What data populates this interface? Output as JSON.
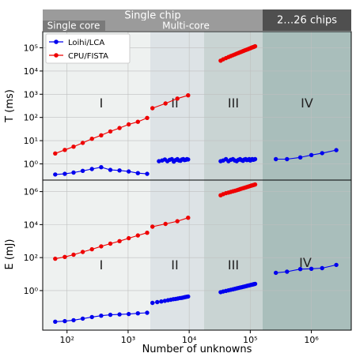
{
  "banners": {
    "single_chip": "Single chip",
    "single_core": "Single core",
    "multi_core": "Multi-core",
    "multi_chip": "2…26 chips"
  },
  "colors": {
    "region1": "#eef1f0",
    "region2": "#dde3e6",
    "region3": "#c9d4d3",
    "region4": "#a9bebb",
    "banner_light": "#9b9b9b",
    "banner_mid": "#7a7a7a",
    "banner_dark": "#4f4f4f",
    "loihi": "#0000ee",
    "cpu": "#ee0000"
  },
  "chart_data": [
    {
      "type": "line",
      "ylabel": "T (ms)",
      "xlabel": "",
      "xscale": "log",
      "yscale": "log",
      "xlim": [
        40,
        4500000
      ],
      "ylim": [
        0.2,
        500000
      ],
      "yticks": [
        1,
        10,
        100,
        1000,
        10000,
        100000
      ],
      "ytick_labels": [
        "10⁰",
        "10¹",
        "10²",
        "10³",
        "10⁴",
        "10⁵"
      ],
      "grid": true,
      "legend": "top-left",
      "region_labels": [
        "I",
        "II",
        "III",
        "IV"
      ],
      "series": [
        {
          "name": "Loihi/LCA",
          "color": "#0000ee",
          "segments": [
            {
              "x": [
                64,
                92,
                128,
                181,
                256,
                362,
                512,
                724,
                1024,
                1448,
                2048
              ],
              "y": [
                0.35,
                0.37,
                0.42,
                0.5,
                0.6,
                0.72,
                0.55,
                0.52,
                0.47,
                0.4,
                0.37
              ]
            },
            {
              "x": [
                3200,
                3600,
                4000,
                4400,
                4800,
                5200,
                5600,
                6000,
                6400,
                6800,
                7200,
                7600,
                8000,
                8400,
                8800,
                9200,
                9600
              ],
              "y": [
                1.3,
                1.4,
                1.55,
                1.3,
                1.5,
                1.6,
                1.25,
                1.45,
                1.6,
                1.4,
                1.35,
                1.55,
                1.6,
                1.45,
                1.5,
                1.6,
                1.55
              ]
            },
            {
              "x": [
                32768,
                36000,
                40000,
                44000,
                48000,
                52000,
                56000,
                60000,
                64000,
                68000,
                72000,
                76000,
                80000,
                84000,
                88000,
                92000,
                96000,
                100000,
                104000,
                108000,
                112000,
                116000,
                120000
              ],
              "y": [
                1.3,
                1.4,
                1.6,
                1.3,
                1.5,
                1.6,
                1.4,
                1.3,
                1.5,
                1.6,
                1.45,
                1.35,
                1.55,
                1.6,
                1.45,
                1.5,
                1.6,
                1.4,
                1.55,
                1.6,
                1.5,
                1.55,
                1.6
              ]
            },
            {
              "x": [
                262144,
                400000,
                660000,
                1000000,
                1500000,
                2560000
              ],
              "y": [
                1.6,
                1.6,
                1.9,
                2.4,
                2.9,
                3.9
              ]
            }
          ]
        },
        {
          "name": "CPU/FISTA",
          "color": "#ee0000",
          "segments": [
            {
              "x": [
                64,
                92,
                128,
                181,
                256,
                362,
                512,
                724,
                1024,
                1448,
                2048
              ],
              "y": [
                2.8,
                4,
                5.5,
                8,
                12,
                17,
                25,
                35,
                50,
                65,
                95
              ]
            },
            {
              "x": [
                2500,
                4096,
                6400,
                9600
              ],
              "y": [
                250,
                400,
                650,
                900
              ]
            },
            {
              "x": [
                32768,
                36000,
                40000,
                44000,
                48000,
                52000,
                56000,
                60000,
                64000,
                68000,
                72000,
                76000,
                80000,
                84000,
                88000,
                92000,
                96000,
                100000,
                104000,
                108000,
                112000,
                116000,
                120000
              ],
              "y": [
                28000,
                32000,
                36000,
                40000,
                44000,
                48000,
                52000,
                56000,
                60000,
                64000,
                68000,
                72000,
                76000,
                80000,
                84000,
                88000,
                92000,
                96000,
                100000,
                104000,
                108000,
                112000,
                116000
              ]
            }
          ]
        }
      ]
    },
    {
      "type": "line",
      "ylabel": "E (mJ)",
      "xlabel": "Number of unknowns",
      "xscale": "log",
      "yscale": "log",
      "xlim": [
        40,
        4500000
      ],
      "ylim": [
        0.004,
        5000000
      ],
      "yticks": [
        1,
        100,
        10000,
        1000000
      ],
      "ytick_labels": [
        "10⁰",
        "10²",
        "10⁴",
        "10⁶"
      ],
      "xticks": [
        100,
        1000,
        10000,
        100000,
        1000000
      ],
      "xtick_labels": [
        "10²",
        "10³",
        "10⁴",
        "10⁵",
        "10⁶"
      ],
      "grid": true,
      "region_labels": [
        "I",
        "II",
        "III",
        "IV"
      ],
      "series": [
        {
          "name": "Loihi/LCA",
          "color": "#0000ee",
          "segments": [
            {
              "x": [
                64,
                92,
                128,
                181,
                256,
                362,
                512,
                724,
                1024,
                1448,
                2048
              ],
              "y": [
                0.013,
                0.014,
                0.016,
                0.02,
                0.025,
                0.03,
                0.034,
                0.036,
                0.038,
                0.042,
                0.045
              ]
            },
            {
              "x": [
                2500,
                3000,
                3500,
                4000,
                4500,
                5000,
                5500,
                6000,
                6500,
                7000,
                7500,
                8000,
                8500,
                9000,
                9600
              ],
              "y": [
                0.18,
                0.2,
                0.22,
                0.24,
                0.26,
                0.28,
                0.3,
                0.31,
                0.33,
                0.35,
                0.36,
                0.38,
                0.4,
                0.42,
                0.44
              ]
            },
            {
              "x": [
                32768,
                36000,
                40000,
                44000,
                48000,
                52000,
                56000,
                60000,
                64000,
                68000,
                72000,
                76000,
                80000,
                84000,
                88000,
                92000,
                96000,
                100000,
                104000,
                108000,
                112000,
                116000,
                120000
              ],
              "y": [
                0.8,
                0.88,
                0.96,
                1.04,
                1.12,
                1.2,
                1.28,
                1.36,
                1.44,
                1.52,
                1.6,
                1.68,
                1.76,
                1.84,
                1.92,
                2.0,
                2.08,
                2.16,
                2.24,
                2.32,
                2.4,
                2.48,
                2.56
              ]
            },
            {
              "x": [
                262144,
                400000,
                660000,
                1000000,
                1500000,
                2560000
              ],
              "y": [
                12,
                14,
                20,
                21,
                23,
                36
              ]
            }
          ]
        },
        {
          "name": "CPU/FISTA",
          "color": "#ee0000",
          "segments": [
            {
              "x": [
                64,
                92,
                128,
                181,
                256,
                362,
                512,
                724,
                1024,
                1448,
                2048
              ],
              "y": [
                85,
                110,
                150,
                220,
                320,
                480,
                700,
                1000,
                1500,
                2200,
                3200
              ]
            },
            {
              "x": [
                2500,
                4096,
                6400,
                9600
              ],
              "y": [
                7500,
                11000,
                16000,
                26000
              ]
            },
            {
              "x": [
                32768,
                36000,
                40000,
                44000,
                48000,
                52000,
                56000,
                60000,
                64000,
                68000,
                72000,
                76000,
                80000,
                84000,
                88000,
                92000,
                96000,
                100000,
                104000,
                108000,
                112000,
                116000,
                120000
              ],
              "y": [
                600000,
                700000,
                800000,
                880000,
                960000,
                1040000,
                1120000,
                1200000,
                1300000,
                1400000,
                1500000,
                1600000,
                1700000,
                1800000,
                1900000,
                2000000,
                2100000,
                2200000,
                2300000,
                2400000,
                2500000,
                2600000,
                2700000
              ]
            }
          ]
        }
      ]
    }
  ]
}
